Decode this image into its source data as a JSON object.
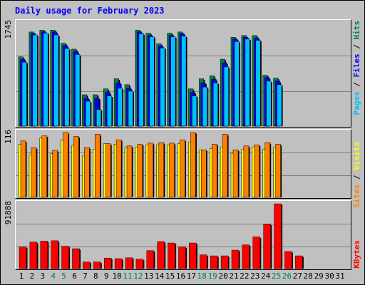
{
  "title": "Daily usage for February 2023",
  "colors": {
    "hits": "#008040",
    "files": "#0000ff",
    "pages": "#00c0ff",
    "visits": "#ffff00",
    "sites": "#ff8000",
    "kbytes": "#ff0000",
    "weekend_day": "#008040",
    "weekday_day": "#000000"
  },
  "days": [
    "1",
    "2",
    "3",
    "4",
    "5",
    "6",
    "7",
    "8",
    "9",
    "10",
    "11",
    "12",
    "13",
    "14",
    "15",
    "16",
    "17",
    "18",
    "19",
    "20",
    "21",
    "22",
    "23",
    "24",
    "25",
    "26",
    "27",
    "28",
    "29",
    "30",
    "31"
  ],
  "weekend_days": [
    "4",
    "5",
    "11",
    "12",
    "18",
    "19",
    "25",
    "26"
  ],
  "chart_data": [
    {
      "type": "bar",
      "panel": "top",
      "ymax_label": "1745",
      "ylim": [
        0,
        1745
      ],
      "right_labels": [
        "Hits",
        "Files",
        "Pages"
      ],
      "series": [
        {
          "name": "Hits",
          "values": [
            1170,
            1590,
            1620,
            1620,
            1400,
            1300,
            530,
            530,
            630,
            800,
            700,
            1620,
            1570,
            1390,
            1570,
            1590,
            630,
            800,
            850,
            1130,
            1500,
            1530,
            1530,
            860,
            810,
            0,
            0,
            0
          ]
        },
        {
          "name": "Files",
          "values": [
            1130,
            1560,
            1590,
            1590,
            1360,
            1260,
            470,
            470,
            570,
            730,
            640,
            1590,
            1530,
            1350,
            1530,
            1560,
            570,
            730,
            790,
            1070,
            1470,
            1500,
            1490,
            820,
            760,
            0,
            0,
            0
          ]
        },
        {
          "name": "Pages",
          "values": [
            1080,
            1540,
            1570,
            1540,
            1310,
            1210,
            420,
            280,
            510,
            640,
            590,
            1560,
            1510,
            1320,
            1510,
            1520,
            510,
            660,
            730,
            1000,
            1430,
            1470,
            1450,
            760,
            700,
            0,
            0,
            0
          ]
        }
      ]
    },
    {
      "type": "bar",
      "panel": "middle",
      "ymax_label": "116",
      "ylim": [
        0,
        116
      ],
      "right_labels": [
        "Visits",
        "Sites"
      ],
      "series": [
        {
          "name": "Visits",
          "values": [
            95,
            76,
            106,
            78,
            102,
            93,
            74,
            86,
            96,
            95,
            89,
            90,
            94,
            94,
            94,
            96,
            99,
            85,
            87,
            90,
            79,
            86,
            90,
            86,
            90,
            0,
            0,
            0
          ]
        },
        {
          "name": "Sites",
          "values": [
            101,
            89,
            110,
            84,
            116,
            109,
            89,
            113,
            96,
            103,
            92,
            95,
            97,
            98,
            97,
            103,
            116,
            85,
            95,
            113,
            85,
            92,
            94,
            98,
            95,
            0,
            0,
            0
          ]
        }
      ]
    },
    {
      "type": "bar",
      "panel": "bottom",
      "ymax_label": "91888",
      "ylim": [
        0,
        91888
      ],
      "right_labels": [
        "KBytes"
      ],
      "series": [
        {
          "name": "KBytes",
          "values": [
            30900,
            37600,
            38900,
            39500,
            31600,
            28200,
            9400,
            9400,
            14800,
            14100,
            15400,
            13400,
            25500,
            38300,
            36300,
            30900,
            36300,
            19500,
            18100,
            18100,
            26200,
            33600,
            45000,
            63200,
            91800,
            24200,
            18100,
            0
          ]
        }
      ]
    }
  ]
}
